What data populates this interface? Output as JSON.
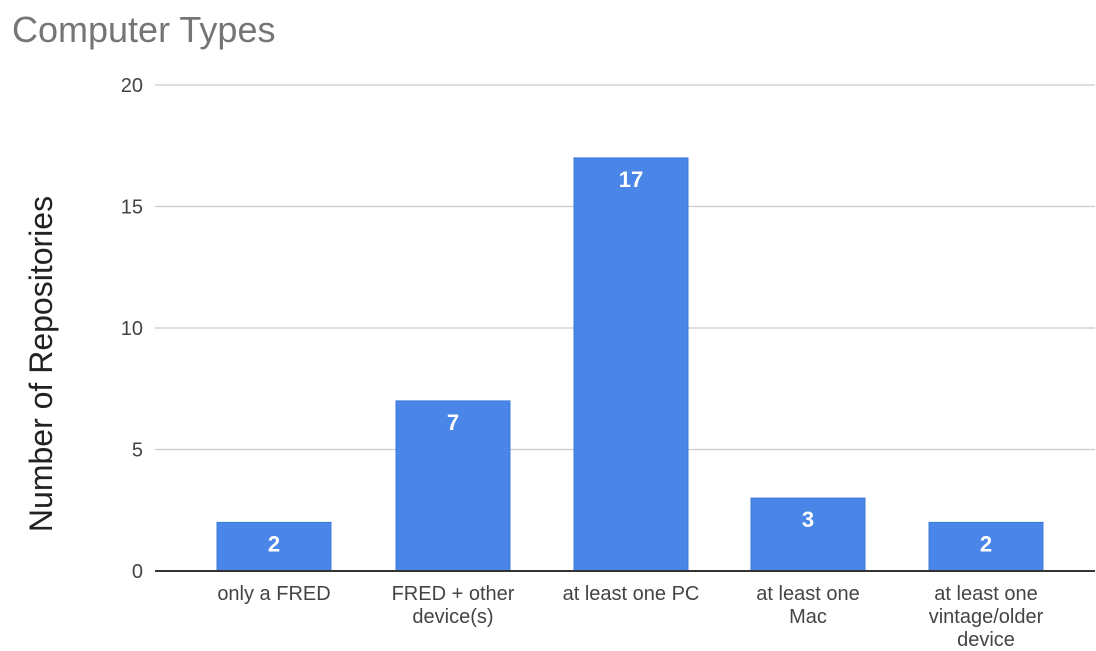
{
  "chart_data": {
    "type": "bar",
    "title": "Computer Types",
    "xlabel": "",
    "ylabel": "Number of Repositories",
    "categories": [
      [
        "only a FRED"
      ],
      [
        "FRED + other",
        "device(s)"
      ],
      [
        "at least one PC"
      ],
      [
        "at least one",
        "Mac"
      ],
      [
        "at least one",
        "vintage/older",
        "device"
      ]
    ],
    "values": [
      2,
      7,
      17,
      3,
      2
    ],
    "data_labels": [
      "2",
      "7",
      "17",
      "3",
      "2"
    ],
    "yticks": [
      "0",
      "5",
      "10",
      "15",
      "20"
    ],
    "ylim": [
      0,
      20
    ],
    "grid": true,
    "legend": "none",
    "colors": {
      "bar": "#4a86e8",
      "bar_edge": "#3d78d8",
      "grid": "#cccccc",
      "axis": "#333333"
    }
  }
}
